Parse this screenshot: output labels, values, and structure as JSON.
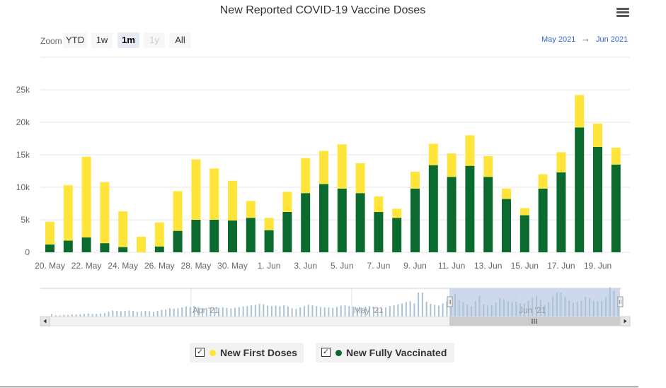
{
  "title": "New Reported COVID-19 Vaccine Doses",
  "menu_icon": "hamburger-menu-icon",
  "zoom": {
    "label": "Zoom",
    "buttons": [
      {
        "label": "YTD",
        "state": "normal"
      },
      {
        "label": "1w",
        "state": "normal"
      },
      {
        "label": "1m",
        "state": "active"
      },
      {
        "label": "1y",
        "state": "disabled"
      },
      {
        "label": "All",
        "state": "normal"
      }
    ]
  },
  "range": {
    "from": "May 2021",
    "arrow": "→",
    "to": "Jun 2021"
  },
  "colors": {
    "first": "#ffe53b",
    "full": "#0b6b2e",
    "navigator": "#a9c2d6",
    "navigator_mask": "#c9d4ea"
  },
  "chart_data": {
    "type": "bar",
    "stacked": true,
    "title": "New Reported COVID-19 Vaccine Doses",
    "categories": [
      "20. May",
      "21. May",
      "22. May",
      "23. May",
      "24. May",
      "25. May",
      "26. May",
      "27. May",
      "28. May",
      "29. May",
      "30. May",
      "31. May",
      "1. Jun",
      "2. Jun",
      "3. Jun",
      "4. Jun",
      "5. Jun",
      "6. Jun",
      "7. Jun",
      "8. Jun",
      "9. Jun",
      "10. Jun",
      "11. Jun",
      "12. Jun",
      "13. Jun",
      "14. Jun",
      "15. Jun",
      "16. Jun",
      "17. Jun",
      "18. Jun",
      "19. Jun",
      "20. Jun"
    ],
    "x_tick_labels": [
      "20. May",
      "22. May",
      "24. May",
      "26. May",
      "28. May",
      "30. May",
      "1. Jun",
      "3. Jun",
      "5. Jun",
      "7. Jun",
      "9. Jun",
      "11. Jun",
      "13. Jun",
      "15. Jun",
      "17. Jun",
      "19. Jun"
    ],
    "series": [
      {
        "name": "New Fully Vaccinated",
        "values": [
          1200,
          1800,
          2300,
          1400,
          800,
          0,
          900,
          3300,
          5000,
          5000,
          4900,
          5300,
          3400,
          6200,
          9100,
          10500,
          9800,
          9100,
          6200,
          5300,
          9800,
          13400,
          11600,
          13300,
          11600,
          8200,
          5700,
          9800,
          12300,
          19200,
          16200,
          13500
        ]
      },
      {
        "name": "New First Doses",
        "values": [
          3500,
          8500,
          12400,
          9400,
          5500,
          2400,
          3700,
          6100,
          9300,
          7900,
          6100,
          2600,
          1900,
          3100,
          5400,
          5100,
          6800,
          4600,
          2400,
          1400,
          2600,
          3300,
          3600,
          4700,
          3200,
          1600,
          1100,
          2200,
          3100,
          5000,
          3600,
          2600
        ]
      }
    ],
    "ylim": [
      0,
      25000
    ],
    "y_ticks": [
      0,
      5000,
      10000,
      15000,
      20000,
      25000
    ],
    "y_tick_labels": [
      "0",
      "5k",
      "10k",
      "15k",
      "20k",
      "25k"
    ],
    "navigator": {
      "labels": [
        "Apr '21",
        "May '21",
        "Jun '21"
      ],
      "values": [
        0.6,
        0.3,
        0.3,
        0.4,
        0.4,
        0.5,
        0.5,
        0.5,
        0.6,
        0.7,
        0.6,
        0.6,
        0.7,
        0.8,
        1.1,
        1.4,
        1.3,
        1.2,
        1.3,
        1.4,
        1.3,
        1.1,
        1.2,
        1.3,
        1.2,
        1.1,
        1.3,
        1.5,
        1.6,
        1.9,
        1.8,
        1.9,
        2.1,
        2.3,
        2.2,
        2.4,
        2.2,
        2.0,
        2.0,
        2.1,
        2.0,
        2.0,
        2.1,
        2.0,
        1.9,
        2.0,
        2.2,
        2.3,
        2.4,
        2.6,
        2.7,
        2.9,
        2.8,
        2.5,
        2.4,
        2.5,
        2.4,
        2.6,
        2.3,
        1.9,
        1.8,
        2.1,
        2.4,
        2.7,
        2.6,
        2.4,
        2.2,
        2.1,
        2.1,
        2.0,
        2.2,
        2.5,
        2.6,
        2.4,
        2.3,
        2.0,
        2.1,
        2.3,
        2.4,
        2.3,
        2.1,
        1.9,
        2.1,
        2.4,
        2.6,
        2.8,
        3.0,
        3.3,
        3.5,
        3.0,
        5.5,
        5.5,
        3.4,
        2.9,
        2.7,
        2.5,
        3.0,
        3.5,
        4.4,
        5.1,
        3.8,
        3.3,
        2.8,
        2.4,
        3.6,
        4.7,
        2.8,
        2.5,
        2.6,
        3.2,
        4.3,
        4.0,
        3.5,
        3.3,
        3.4,
        3.0,
        2.9,
        3.7,
        4.3,
        4.7,
        3.9,
        2.7,
        3.3,
        4.6,
        5.5,
        5.5,
        4.6,
        3.7,
        3.2,
        3.4,
        3.7,
        4.5,
        4.2,
        3.6,
        3.5,
        3.6,
        4.4,
        6.7,
        5.9,
        4.3
      ]
    }
  },
  "legend": [
    {
      "label": "New First Doses",
      "color_key": "first"
    },
    {
      "label": "New Fully Vaccinated",
      "color_key": "full"
    }
  ]
}
